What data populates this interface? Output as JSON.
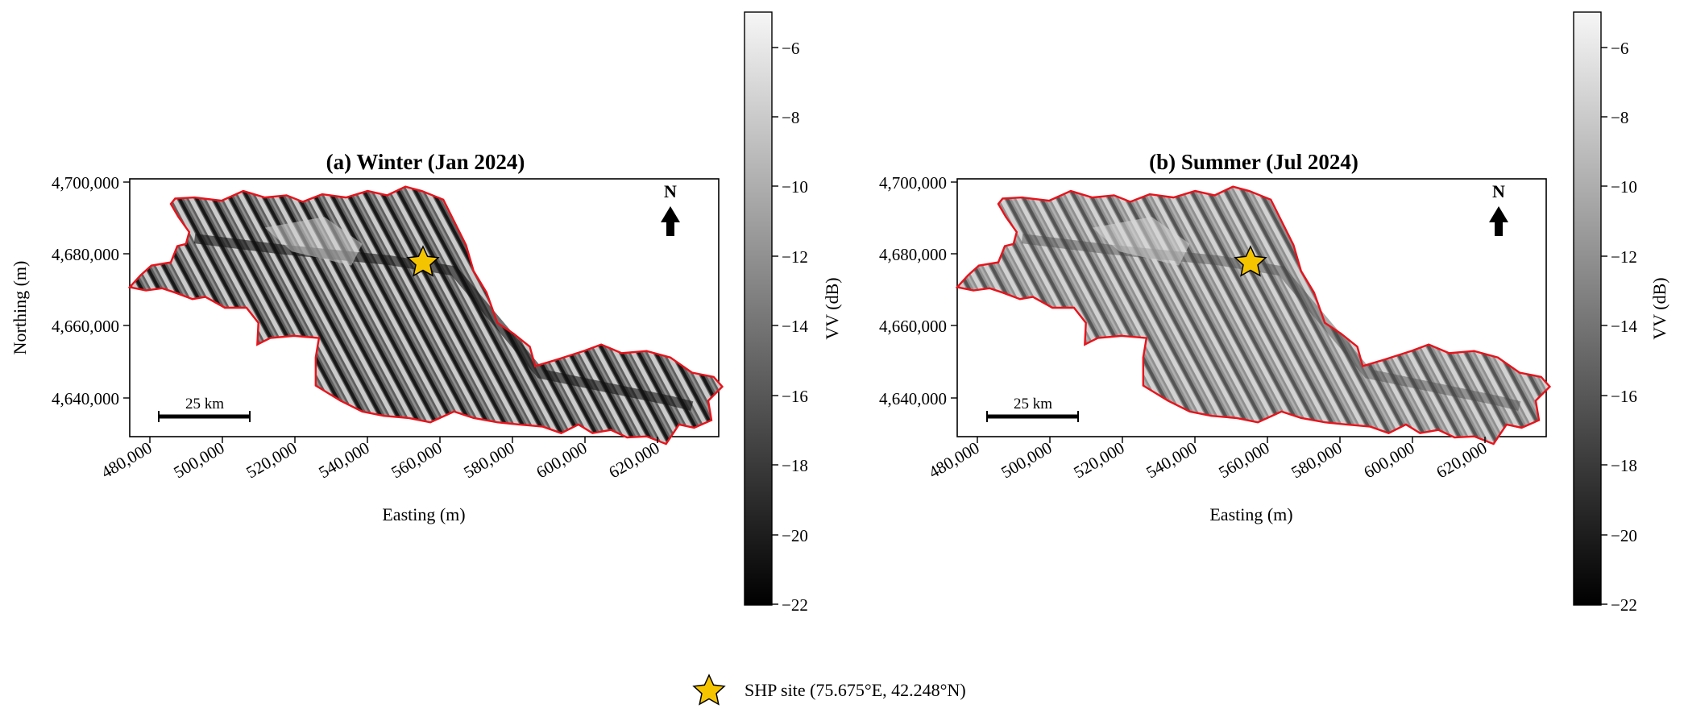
{
  "panels": [
    {
      "id": "winter",
      "title": "(a) Winter (Jan 2024)",
      "xlabel": "Easting (m)",
      "ylabel": "Northing (m)",
      "x_ticks": [
        "480,000",
        "500,000",
        "520,000",
        "540,000",
        "560,000",
        "580,000",
        "600,000",
        "620,000"
      ],
      "y_ticks": [
        "4,700,000",
        "4,680,000",
        "4,660,000",
        "4,640,000"
      ],
      "north_label": "N",
      "scalebar_label": "25 km",
      "colorbar_label": "VV (dB)",
      "colorbar_ticks": [
        "−6",
        "−8",
        "−10",
        "−12",
        "−14",
        "−16",
        "−18",
        "−20",
        "−22"
      ],
      "basin_fill": "#5e5e5e",
      "texture_dark": "#111111",
      "texture_light": "#dedede"
    },
    {
      "id": "summer",
      "title": "(b) Summer (Jul 2024)",
      "xlabel": "Easting (m)",
      "ylabel": "",
      "x_ticks": [
        "480,000",
        "500,000",
        "520,000",
        "540,000",
        "560,000",
        "580,000",
        "600,000",
        "620,000"
      ],
      "y_ticks": [
        "4,700,000",
        "4,680,000",
        "4,660,000",
        "4,640,000"
      ],
      "north_label": "N",
      "scalebar_label": "25 km",
      "colorbar_label": "VV (dB)",
      "colorbar_ticks": [
        "−6",
        "−8",
        "−10",
        "−12",
        "−14",
        "−16",
        "−18",
        "−20",
        "−22"
      ],
      "basin_fill": "#8f8f8f",
      "texture_dark": "#3a3a3a",
      "texture_light": "#e2e2e2"
    }
  ],
  "legend": {
    "label": "SHP site (75.675°E, 42.248°N)"
  },
  "site": {
    "easting": 555000,
    "northing": 4678000
  },
  "colors": {
    "boundary": "#e8131b",
    "star_fill": "#f5c400",
    "star_stroke": "#000000",
    "colorbar_top": "#f6f6f6",
    "colorbar_bottom": "#000000"
  }
}
